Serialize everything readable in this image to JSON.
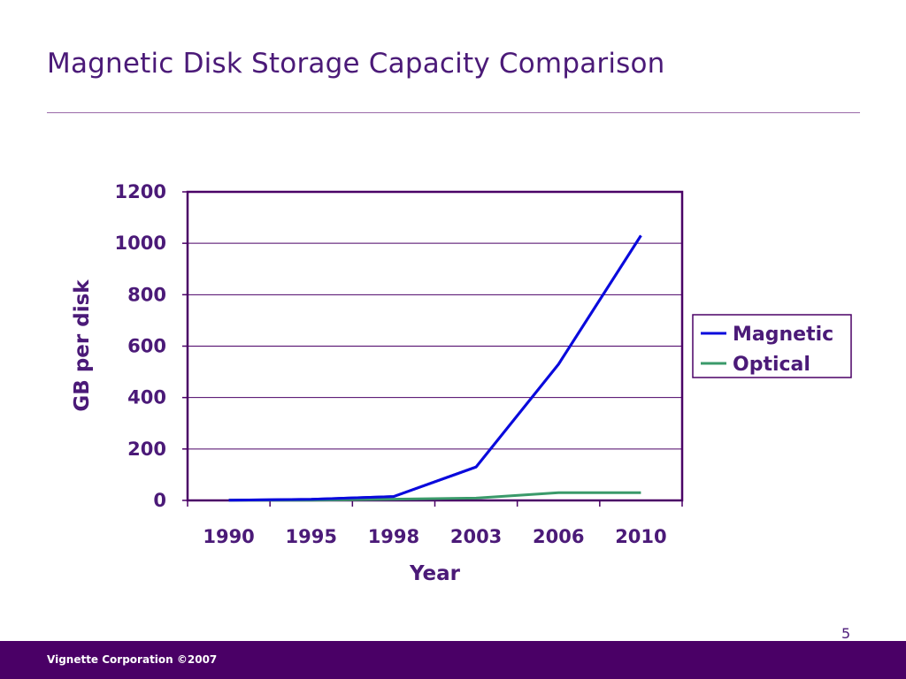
{
  "slide": {
    "title": "Magnetic Disk Storage Capacity Comparison",
    "page_number": "5",
    "footer": "Vignette Corporation ©2007",
    "colors": {
      "title": "#4b1a78",
      "footer_bar": "#4a0066",
      "axis_frame": "#4a0066"
    }
  },
  "chart_data": {
    "type": "line",
    "xlabel": "Year",
    "ylabel": "GB per disk",
    "categories": [
      "1990",
      "1995",
      "1998",
      "2003",
      "2006",
      "2010"
    ],
    "ylim": [
      0,
      1200
    ],
    "yticks": [
      "0",
      "200",
      "400",
      "600",
      "800",
      "1000",
      "1200"
    ],
    "grid": true,
    "legend_position": "right",
    "series": [
      {
        "name": "Magnetic",
        "color": "#0a0adc",
        "values": [
          1,
          4,
          15,
          130,
          530,
          1030
        ]
      },
      {
        "name": "Optical",
        "color": "#3a9a6a",
        "values": [
          0.7,
          0.7,
          4.7,
          9,
          30,
          30
        ]
      }
    ]
  }
}
